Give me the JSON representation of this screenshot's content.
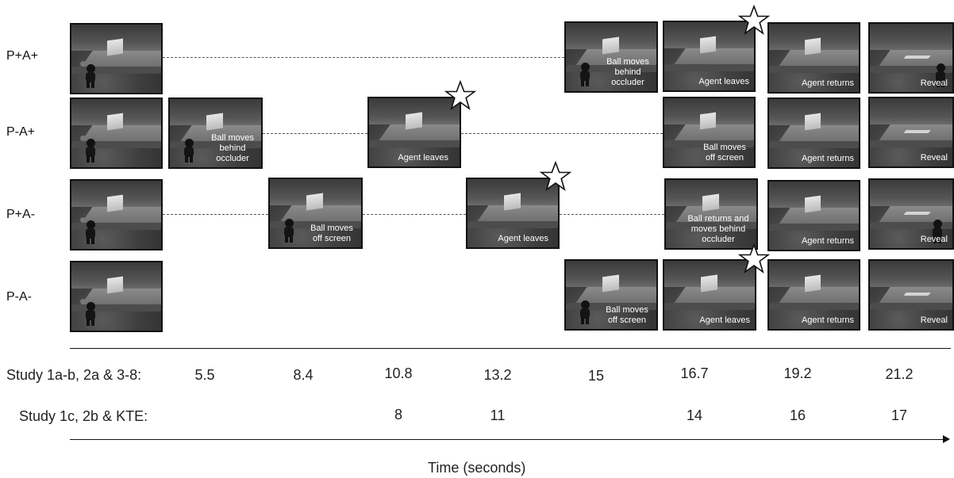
{
  "rows": [
    {
      "label": "P+A+"
    },
    {
      "label": "P-A+"
    },
    {
      "label": "P+A-"
    },
    {
      "label": "P-A-"
    }
  ],
  "captions": {
    "c1": "Ball moves behind occluder",
    "c2": "Agent leaves",
    "c3": "Agent returns",
    "c4": "Reveal",
    "c5": "Ball moves behind occluder",
    "c6": "Agent leaves",
    "c7": "Ball moves off screen",
    "c8": "Agent returns",
    "c9": "Reveal",
    "c10": "Ball moves off screen",
    "c11": "Agent leaves",
    "c12": "Ball returns and moves behind occluder",
    "c13": "Agent returns",
    "c14": "Reveal",
    "c15": "Ball moves off screen",
    "c16": "Agent leaves",
    "c17": "Agent returns",
    "c18": "Reveal"
  },
  "timeline": {
    "row1_label": "Study 1a-b, 2a & 3-8:",
    "row1_values": [
      "5.5",
      "8.4",
      "10.8",
      "13.2",
      "15",
      "16.7",
      "19.2",
      "21.2"
    ],
    "row2_label": "Study 1c, 2b & KTE:",
    "row2_values": [
      "8",
      "11",
      "14",
      "16",
      "17"
    ],
    "axis_title": "Time (seconds)"
  }
}
